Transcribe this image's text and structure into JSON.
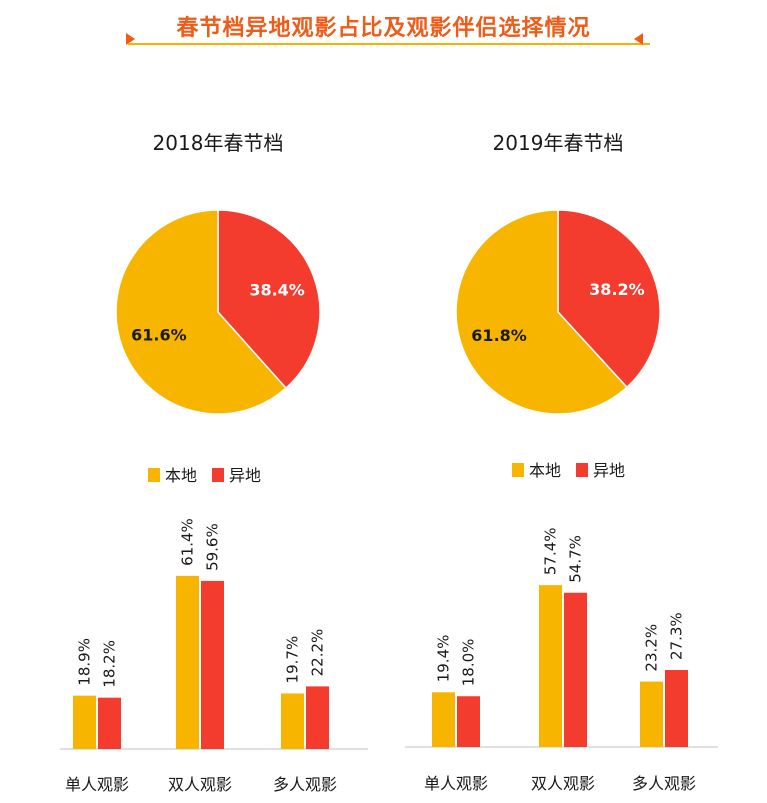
{
  "header": {
    "title": "春节档异地观影占比及观影伴侣选择情况"
  },
  "colors": {
    "local": "#f7b500",
    "remote": "#f33b2e",
    "accent": "#ee5c18",
    "axis": "#d6d6d6"
  },
  "chart_data": [
    {
      "type": "pie",
      "title": "2018年春节档",
      "slices": [
        {
          "name": "异地",
          "value": 38.4,
          "label": "38.4%"
        },
        {
          "name": "本地",
          "value": 61.6,
          "label": "61.6%"
        }
      ]
    },
    {
      "type": "pie",
      "title": "2019年春节档",
      "slices": [
        {
          "name": "异地",
          "value": 38.2,
          "label": "38.2%"
        },
        {
          "name": "本地",
          "value": 61.8,
          "label": "61.8%"
        }
      ]
    },
    {
      "type": "bar",
      "legend": [
        "本地",
        "异地"
      ],
      "categories": [
        "单人观影",
        "双人观影",
        "多人观影"
      ],
      "series": [
        {
          "name": "本地",
          "values": [
            18.9,
            61.4,
            19.7
          ],
          "labels": [
            "18.9%",
            "61.4%",
            "19.7%"
          ]
        },
        {
          "name": "异地",
          "values": [
            18.2,
            59.6,
            22.2
          ],
          "labels": [
            "18.2%",
            "59.6%",
            "22.2%"
          ]
        }
      ]
    },
    {
      "type": "bar",
      "legend": [
        "本地",
        "异地"
      ],
      "categories": [
        "单人观影",
        "双人观影",
        "多人观影"
      ],
      "series": [
        {
          "name": "本地",
          "values": [
            19.4,
            57.4,
            23.2
          ],
          "labels": [
            "19.4%",
            "57.4%",
            "23.2%"
          ]
        },
        {
          "name": "异地",
          "values": [
            18.0,
            54.7,
            27.3
          ],
          "labels": [
            "18.0%",
            "54.7%",
            "27.3%"
          ]
        }
      ]
    }
  ]
}
